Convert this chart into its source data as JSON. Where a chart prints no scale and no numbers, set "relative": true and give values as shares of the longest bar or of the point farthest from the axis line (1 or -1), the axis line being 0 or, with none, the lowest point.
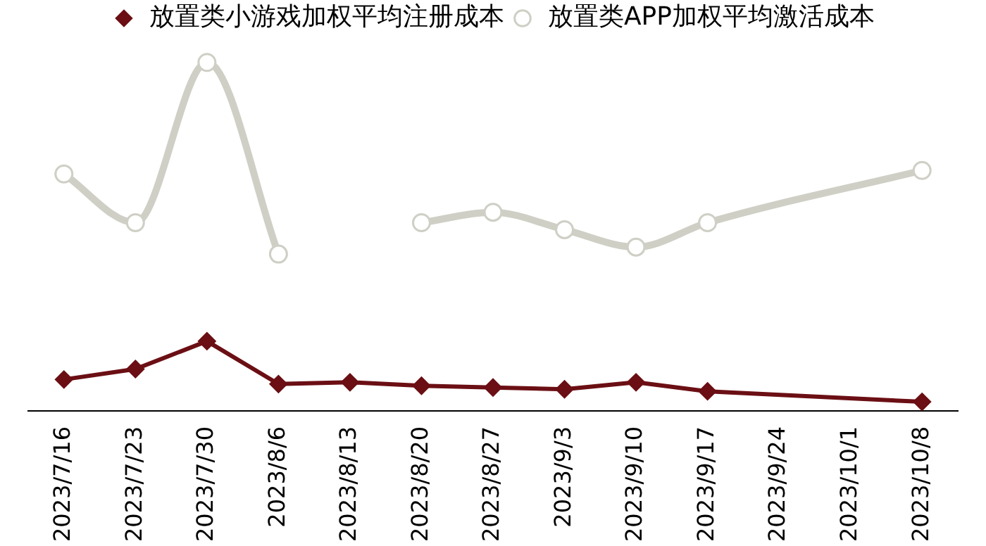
{
  "chart_data": {
    "type": "line",
    "relative": true,
    "legend": "top",
    "grid": false,
    "categories": [
      "2023/7/16",
      "2023/7/23",
      "2023/7/30",
      "2023/8/6",
      "2023/8/13",
      "2023/8/20",
      "2023/8/27",
      "2023/9/3",
      "2023/9/10",
      "2023/9/17",
      "2023/9/24",
      "2023/10/1",
      "2023/10/8"
    ],
    "series": [
      {
        "name": "放置类小游戏加权平均注册成本",
        "color": "#6b0f14",
        "marker": "diamond",
        "x": [
          "2023/7/16",
          "2023/7/23",
          "2023/7/30",
          "2023/8/6",
          "2023/8/13",
          "2023/8/20",
          "2023/8/27",
          "2023/9/3",
          "2023/9/10",
          "2023/9/17",
          "2023/10/8"
        ],
        "values": [
          0.09,
          0.12,
          0.2,
          0.077,
          0.082,
          0.072,
          0.067,
          0.062,
          0.082,
          0.056,
          0.026
        ]
      },
      {
        "name": "放置类APP加权平均激活成本",
        "color": "#cfcfc6",
        "marker": "circle",
        "x": [
          "2023/7/16",
          "2023/7/23",
          "2023/7/30",
          "2023/8/6",
          "2023/8/13",
          "2023/8/20",
          "2023/8/27",
          "2023/9/3",
          "2023/9/10",
          "2023/9/17",
          "2023/10/8"
        ],
        "values": [
          0.68,
          0.54,
          1,
          0.45,
          null,
          0.54,
          0.57,
          0.52,
          0.47,
          0.54,
          0.69
        ]
      }
    ]
  }
}
